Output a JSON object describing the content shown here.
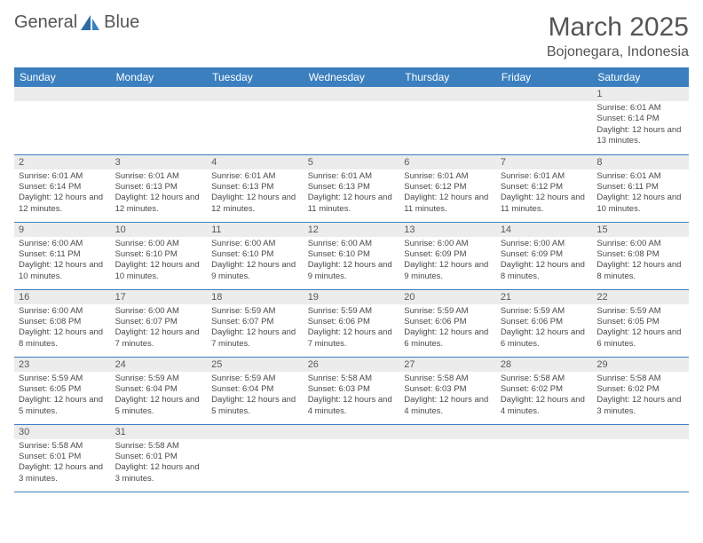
{
  "logo": {
    "text1": "General",
    "text2": "Blue",
    "accent": "#3b7fbf"
  },
  "title": {
    "month": "March 2025",
    "location": "Bojonegara, Indonesia"
  },
  "colors": {
    "header_bg": "#3b7fbf",
    "header_fg": "#ffffff",
    "daynum_bg": "#ececec",
    "daynum_fg": "#595959",
    "border": "#3b7fbf",
    "text": "#4a4a4a"
  },
  "weekdays": [
    "Sunday",
    "Monday",
    "Tuesday",
    "Wednesday",
    "Thursday",
    "Friday",
    "Saturday"
  ],
  "weeks": [
    [
      null,
      null,
      null,
      null,
      null,
      null,
      {
        "d": "1",
        "rise": "6:01 AM",
        "set": "6:14 PM",
        "dl": "12 hours and 13 minutes."
      }
    ],
    [
      {
        "d": "2",
        "rise": "6:01 AM",
        "set": "6:14 PM",
        "dl": "12 hours and 12 minutes."
      },
      {
        "d": "3",
        "rise": "6:01 AM",
        "set": "6:13 PM",
        "dl": "12 hours and 12 minutes."
      },
      {
        "d": "4",
        "rise": "6:01 AM",
        "set": "6:13 PM",
        "dl": "12 hours and 12 minutes."
      },
      {
        "d": "5",
        "rise": "6:01 AM",
        "set": "6:13 PM",
        "dl": "12 hours and 11 minutes."
      },
      {
        "d": "6",
        "rise": "6:01 AM",
        "set": "6:12 PM",
        "dl": "12 hours and 11 minutes."
      },
      {
        "d": "7",
        "rise": "6:01 AM",
        "set": "6:12 PM",
        "dl": "12 hours and 11 minutes."
      },
      {
        "d": "8",
        "rise": "6:01 AM",
        "set": "6:11 PM",
        "dl": "12 hours and 10 minutes."
      }
    ],
    [
      {
        "d": "9",
        "rise": "6:00 AM",
        "set": "6:11 PM",
        "dl": "12 hours and 10 minutes."
      },
      {
        "d": "10",
        "rise": "6:00 AM",
        "set": "6:10 PM",
        "dl": "12 hours and 10 minutes."
      },
      {
        "d": "11",
        "rise": "6:00 AM",
        "set": "6:10 PM",
        "dl": "12 hours and 9 minutes."
      },
      {
        "d": "12",
        "rise": "6:00 AM",
        "set": "6:10 PM",
        "dl": "12 hours and 9 minutes."
      },
      {
        "d": "13",
        "rise": "6:00 AM",
        "set": "6:09 PM",
        "dl": "12 hours and 9 minutes."
      },
      {
        "d": "14",
        "rise": "6:00 AM",
        "set": "6:09 PM",
        "dl": "12 hours and 8 minutes."
      },
      {
        "d": "15",
        "rise": "6:00 AM",
        "set": "6:08 PM",
        "dl": "12 hours and 8 minutes."
      }
    ],
    [
      {
        "d": "16",
        "rise": "6:00 AM",
        "set": "6:08 PM",
        "dl": "12 hours and 8 minutes."
      },
      {
        "d": "17",
        "rise": "6:00 AM",
        "set": "6:07 PM",
        "dl": "12 hours and 7 minutes."
      },
      {
        "d": "18",
        "rise": "5:59 AM",
        "set": "6:07 PM",
        "dl": "12 hours and 7 minutes."
      },
      {
        "d": "19",
        "rise": "5:59 AM",
        "set": "6:06 PM",
        "dl": "12 hours and 7 minutes."
      },
      {
        "d": "20",
        "rise": "5:59 AM",
        "set": "6:06 PM",
        "dl": "12 hours and 6 minutes."
      },
      {
        "d": "21",
        "rise": "5:59 AM",
        "set": "6:06 PM",
        "dl": "12 hours and 6 minutes."
      },
      {
        "d": "22",
        "rise": "5:59 AM",
        "set": "6:05 PM",
        "dl": "12 hours and 6 minutes."
      }
    ],
    [
      {
        "d": "23",
        "rise": "5:59 AM",
        "set": "6:05 PM",
        "dl": "12 hours and 5 minutes."
      },
      {
        "d": "24",
        "rise": "5:59 AM",
        "set": "6:04 PM",
        "dl": "12 hours and 5 minutes."
      },
      {
        "d": "25",
        "rise": "5:59 AM",
        "set": "6:04 PM",
        "dl": "12 hours and 5 minutes."
      },
      {
        "d": "26",
        "rise": "5:58 AM",
        "set": "6:03 PM",
        "dl": "12 hours and 4 minutes."
      },
      {
        "d": "27",
        "rise": "5:58 AM",
        "set": "6:03 PM",
        "dl": "12 hours and 4 minutes."
      },
      {
        "d": "28",
        "rise": "5:58 AM",
        "set": "6:02 PM",
        "dl": "12 hours and 4 minutes."
      },
      {
        "d": "29",
        "rise": "5:58 AM",
        "set": "6:02 PM",
        "dl": "12 hours and 3 minutes."
      }
    ],
    [
      {
        "d": "30",
        "rise": "5:58 AM",
        "set": "6:01 PM",
        "dl": "12 hours and 3 minutes."
      },
      {
        "d": "31",
        "rise": "5:58 AM",
        "set": "6:01 PM",
        "dl": "12 hours and 3 minutes."
      },
      null,
      null,
      null,
      null,
      null
    ]
  ],
  "labels": {
    "sunrise": "Sunrise:",
    "sunset": "Sunset:",
    "daylight": "Daylight:"
  }
}
